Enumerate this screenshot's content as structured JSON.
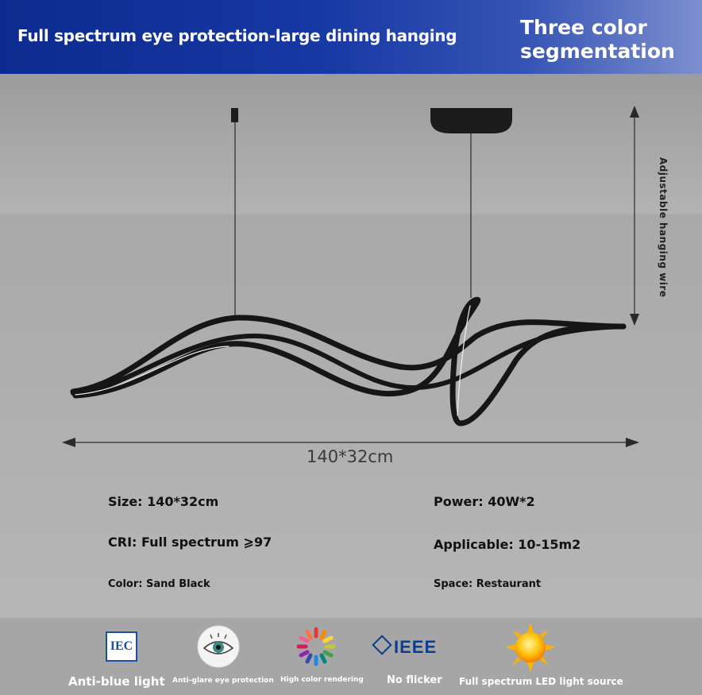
{
  "banner": {
    "title": "Full spectrum eye protection-large dining hanging",
    "subtitle": "Three color segmentation"
  },
  "diagram": {
    "width_label": "140*32cm",
    "height_label": "Adjustable hanging wire"
  },
  "specs": {
    "size": "Size: 140*32cm",
    "power": "Power: 40W*2",
    "cri": "CRI: Full spectrum ⩾97",
    "applicable": "Applicable: 10-15m2",
    "color": "Color: Sand Black",
    "space": "Space: Restaurant"
  },
  "features": [
    {
      "label": "Anti-blue light",
      "icon": "iec-logo-icon",
      "icon_text": "IEC"
    },
    {
      "label": "Anti-glare eye protection",
      "icon": "eye-icon"
    },
    {
      "label": "High color rendering",
      "icon": "color-wheel-icon"
    },
    {
      "label": "No flicker",
      "icon": "ieee-logo-icon",
      "icon_text": "IEEE"
    },
    {
      "label": "Full spectrum LED light source",
      "icon": "sun-icon"
    }
  ],
  "colors": {
    "banner_start": "#0d2b8f",
    "banner_end": "#7d8fcf",
    "lamp": "#1a1a1a",
    "ieee_blue": "#0b3d91"
  }
}
